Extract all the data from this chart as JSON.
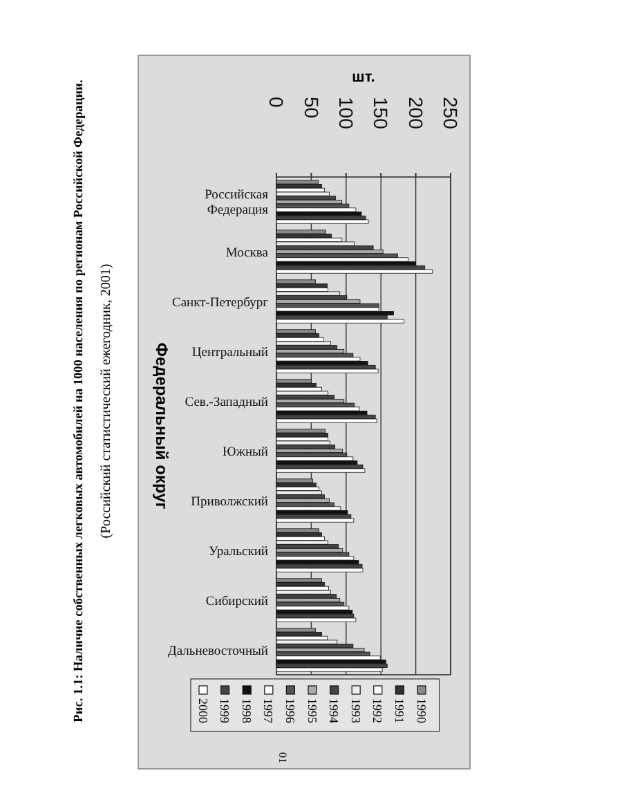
{
  "chart_data": {
    "type": "bar",
    "orientation": "horizontal",
    "title": "Рис. 1.1: Наличие собственных легковых автомобилей на 1000 населения по регионам Российской Федерации.",
    "xlabel": "шт.",
    "ylabel": "Федеральный округ",
    "annotations": [
      "(Российский статистический ежегодник, 2001)",
      "01"
    ],
    "categories": [
      "Российская Федерация",
      "Москва",
      "Санкт-Петербург",
      "Центральный",
      "Сев.-Западный",
      "Южный",
      "Приволжский",
      "Уральский",
      "Сибирский",
      "Дальневосточный"
    ],
    "series": [
      {
        "name": "1990",
        "color": "#8a8a8a",
        "values": [
          60,
          71,
          56,
          56,
          50,
          70,
          52,
          61,
          65,
          56
        ]
      },
      {
        "name": "1991",
        "color": "#333333",
        "values": [
          65,
          79,
          73,
          61,
          57,
          74,
          57,
          65,
          69,
          65
        ]
      },
      {
        "name": "1992",
        "color": "#ffffff",
        "values": [
          69,
          94,
          74,
          68,
          65,
          74,
          61,
          69,
          75,
          73
        ]
      },
      {
        "name": "1993",
        "color": "#eeeeee",
        "values": [
          76,
          112,
          91,
          78,
          74,
          77,
          65,
          74,
          78,
          87
        ]
      },
      {
        "name": "1994",
        "color": "#444444",
        "values": [
          85,
          139,
          101,
          87,
          83,
          84,
          69,
          89,
          86,
          110
        ]
      },
      {
        "name": "1995",
        "color": "#aaaaaa",
        "values": [
          94,
          153,
          120,
          97,
          97,
          95,
          76,
          95,
          91,
          126
        ]
      },
      {
        "name": "1996",
        "color": "#555555",
        "values": [
          104,
          174,
          147,
          110,
          112,
          101,
          83,
          104,
          97,
          134
        ]
      },
      {
        "name": "1997",
        "color": "#ffffff",
        "values": [
          114,
          189,
          147,
          120,
          119,
          110,
          92,
          111,
          104,
          149
        ]
      },
      {
        "name": "1998",
        "color": "#111111",
        "values": [
          122,
          200,
          168,
          131,
          130,
          116,
          102,
          118,
          109,
          157
        ]
      },
      {
        "name": "1999",
        "color": "#444444",
        "values": [
          128,
          213,
          159,
          142,
          142,
          124,
          107,
          123,
          111,
          159
        ]
      },
      {
        "name": "2000",
        "color": "#ffffff",
        "values": [
          132,
          224,
          183,
          146,
          144,
          127,
          111,
          124,
          114,
          152
        ]
      }
    ],
    "xlim": [
      0,
      250
    ],
    "xticks": [
      0,
      50,
      100,
      150,
      200,
      250
    ],
    "grid": "x",
    "legend": "bottom"
  }
}
